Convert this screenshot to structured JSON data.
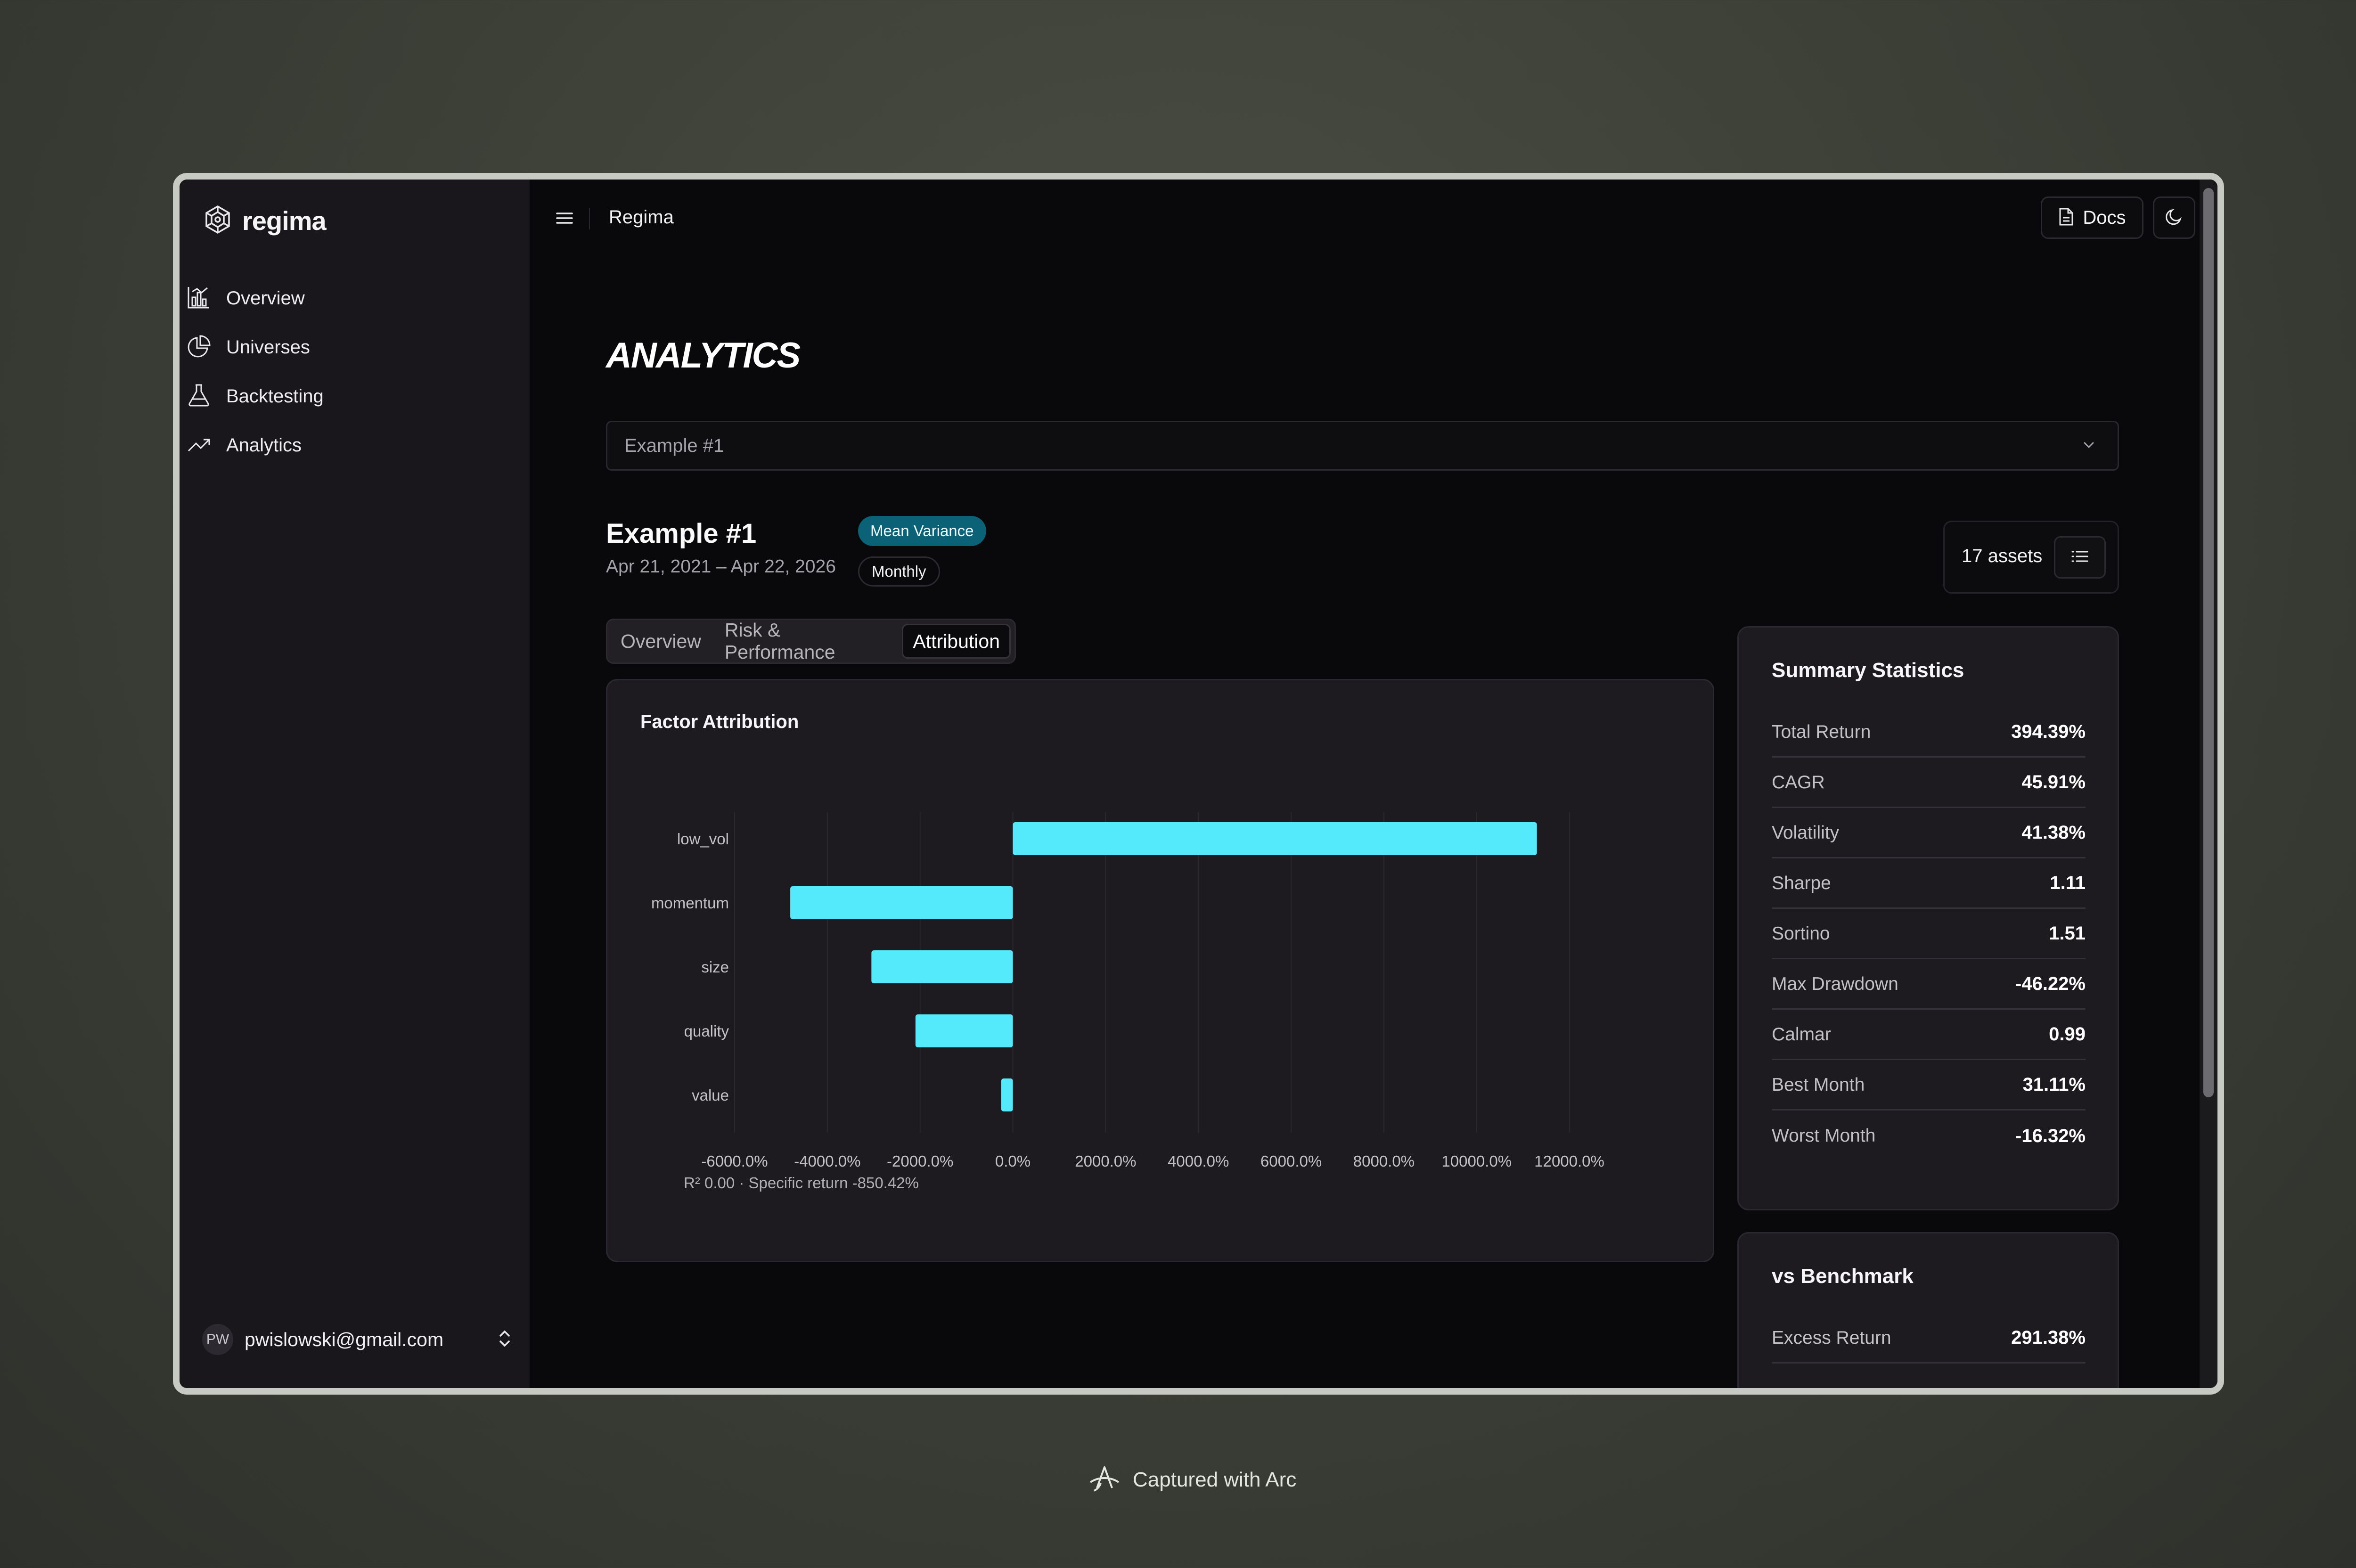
{
  "sidebar": {
    "brand": "regima",
    "nav": [
      {
        "label": "Overview",
        "icon": "chart-icon"
      },
      {
        "label": "Universes",
        "icon": "pie-icon"
      },
      {
        "label": "Backtesting",
        "icon": "flask-icon"
      },
      {
        "label": "Analytics",
        "icon": "trend-icon"
      }
    ],
    "user": {
      "initials": "PW",
      "email": "pwislowski@gmail.com"
    }
  },
  "header": {
    "breadcrumb": "Regima",
    "docs_label": "Docs"
  },
  "page": {
    "title": "ANALYTICS",
    "select_value": "Example #1",
    "backtest": {
      "name": "Example #1",
      "dates": "Apr 21, 2021 – Apr 22, 2026",
      "strategy_badge": "Mean Variance",
      "frequency_badge": "Monthly",
      "assets": "17 assets"
    },
    "tabs": [
      "Overview",
      "Risk & Performance",
      "Attribution"
    ],
    "active_tab": "Attribution"
  },
  "chart_card": {
    "title": "Factor Attribution",
    "footnote": "R² 0.00 · Specific return -850.42%"
  },
  "chart_data": {
    "type": "bar",
    "orientation": "horizontal",
    "title": "Factor Attribution",
    "categories": [
      "low_vol",
      "momentum",
      "size",
      "quality",
      "value"
    ],
    "values": [
      11300,
      -4800,
      -3050,
      -2100,
      -250
    ],
    "xlim": [
      -6000,
      13000
    ],
    "xticks": [
      -6000,
      -4000,
      -2000,
      0,
      2000,
      4000,
      6000,
      8000,
      10000,
      12000
    ],
    "xtick_labels": [
      "-6000.0%",
      "-4000.0%",
      "-2000.0%",
      "0.0%",
      "2000.0%",
      "4000.0%",
      "6000.0%",
      "8000.0%",
      "10000.0%",
      "12000.0%"
    ],
    "unit": "%",
    "bar_color": "#55e9fc",
    "grid": "vertical"
  },
  "summary": {
    "title": "Summary Statistics",
    "rows": [
      {
        "label": "Total Return",
        "value": "394.39%"
      },
      {
        "label": "CAGR",
        "value": "45.91%"
      },
      {
        "label": "Volatility",
        "value": "41.38%"
      },
      {
        "label": "Sharpe",
        "value": "1.11"
      },
      {
        "label": "Sortino",
        "value": "1.51"
      },
      {
        "label": "Max Drawdown",
        "value": "-46.22%"
      },
      {
        "label": "Calmar",
        "value": "0.99"
      },
      {
        "label": "Best Month",
        "value": "31.11%"
      },
      {
        "label": "Worst Month",
        "value": "-16.32%"
      }
    ]
  },
  "benchmark": {
    "title": "vs Benchmark",
    "rows": [
      {
        "label": "Excess Return",
        "value": "291.38%"
      }
    ]
  },
  "footer": {
    "label": "Captured with Arc"
  }
}
